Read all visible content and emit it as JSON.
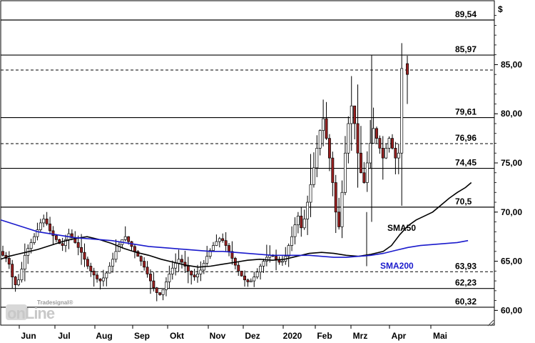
{
  "chart_data": {
    "type": "candlestick",
    "y_unit": "$",
    "ylim": [
      58.5,
      91.5
    ],
    "y_ticks": [
      "85,00",
      "80,00",
      "75,00",
      "70,00",
      "65,00",
      "60,00"
    ],
    "y_tick_values": [
      85,
      80,
      75,
      70,
      65,
      60
    ],
    "x_ticks": [
      "Jun",
      "Jul",
      "Aug",
      "Sep",
      "Okt",
      "Nov",
      "Dez",
      "2020",
      "Feb",
      "Mrz",
      "Apr",
      "Mai"
    ],
    "levels": [
      {
        "label": "89,54",
        "value": 89.54,
        "style": "solid"
      },
      {
        "label": "85,97",
        "value": 85.97,
        "style": "solid"
      },
      {
        "label": "",
        "value": 84.45,
        "style": "dashed"
      },
      {
        "label": "79,61",
        "value": 79.61,
        "style": "solid"
      },
      {
        "label": "76,96",
        "value": 76.96,
        "style": "dashed"
      },
      {
        "label": "74,45",
        "value": 74.45,
        "style": "solid"
      },
      {
        "label": "70,5",
        "value": 70.5,
        "style": "solid"
      },
      {
        "label": "63,93",
        "value": 63.93,
        "style": "dashed"
      },
      {
        "label": "62,23",
        "value": 62.23,
        "style": "solid"
      },
      {
        "label": "60,32",
        "value": 60.32,
        "style": "solid"
      }
    ],
    "series": [
      {
        "name": "SMA50",
        "color": "#000000",
        "values": [
          [
            0,
            65.2
          ],
          [
            10,
            65.5
          ],
          [
            20,
            65.7
          ],
          [
            30,
            65.9
          ],
          [
            45,
            66.2
          ],
          [
            60,
            66.6
          ],
          [
            75,
            67.0
          ],
          [
            90,
            67.3
          ],
          [
            105,
            67.5
          ],
          [
            120,
            67.2
          ],
          [
            135,
            66.8
          ],
          [
            150,
            66.3
          ],
          [
            165,
            65.9
          ],
          [
            180,
            65.6
          ],
          [
            195,
            65.2
          ],
          [
            210,
            64.9
          ],
          [
            225,
            64.6
          ],
          [
            240,
            64.4
          ],
          [
            255,
            64.5
          ],
          [
            270,
            64.7
          ],
          [
            285,
            64.9
          ],
          [
            300,
            65.1
          ],
          [
            315,
            65.2
          ],
          [
            330,
            65.1
          ],
          [
            345,
            65.2
          ],
          [
            360,
            65.5
          ],
          [
            375,
            65.8
          ],
          [
            390,
            65.9
          ],
          [
            405,
            65.8
          ],
          [
            420,
            65.6
          ],
          [
            435,
            65.5
          ],
          [
            450,
            65.7
          ],
          [
            465,
            66.0
          ],
          [
            475,
            66.6
          ],
          [
            485,
            67.7
          ],
          [
            495,
            68.6
          ],
          [
            505,
            69.2
          ],
          [
            515,
            69.6
          ],
          [
            525,
            70.0
          ],
          [
            535,
            70.7
          ],
          [
            545,
            71.4
          ],
          [
            555,
            72.0
          ],
          [
            565,
            72.5
          ],
          [
            572,
            73.0
          ]
        ]
      },
      {
        "name": "SMA200",
        "color": "#1a1acc",
        "values": [
          [
            0,
            69.2
          ],
          [
            15,
            68.8
          ],
          [
            30,
            68.4
          ],
          [
            45,
            68.0
          ],
          [
            60,
            67.8
          ],
          [
            75,
            67.6
          ],
          [
            90,
            67.4
          ],
          [
            105,
            67.3
          ],
          [
            120,
            67.2
          ],
          [
            135,
            67.1
          ],
          [
            150,
            66.9
          ],
          [
            165,
            66.7
          ],
          [
            180,
            66.5
          ],
          [
            195,
            66.4
          ],
          [
            210,
            66.3
          ],
          [
            225,
            66.2
          ],
          [
            240,
            66.1
          ],
          [
            255,
            66.0
          ],
          [
            270,
            66.0
          ],
          [
            285,
            65.9
          ],
          [
            300,
            65.8
          ],
          [
            315,
            65.7
          ],
          [
            330,
            65.6
          ],
          [
            345,
            65.6
          ],
          [
            360,
            65.6
          ],
          [
            375,
            65.6
          ],
          [
            390,
            65.5
          ],
          [
            405,
            65.4
          ],
          [
            420,
            65.4
          ],
          [
            435,
            65.5
          ],
          [
            450,
            65.6
          ],
          [
            465,
            65.8
          ],
          [
            480,
            66.1
          ],
          [
            495,
            66.4
          ],
          [
            510,
            66.6
          ],
          [
            525,
            66.7
          ],
          [
            540,
            66.8
          ],
          [
            555,
            66.9
          ],
          [
            568,
            67.1
          ]
        ]
      }
    ],
    "candle_seed": [
      66.0,
      65.6,
      65.3,
      64.7,
      63.4,
      62.6,
      63.1,
      64.2,
      65.6,
      66.3,
      66.9,
      67.5,
      68.2,
      68.9,
      69.3,
      68.8,
      68.1,
      67.6,
      67.2,
      66.8,
      66.6,
      67.2,
      67.8,
      67.4,
      66.9,
      66.4,
      65.9,
      65.2,
      64.5,
      64.0,
      63.6,
      63.2,
      63.0,
      63.3,
      63.8,
      64.5,
      65.2,
      66.0,
      66.7,
      67.2,
      67.5,
      67.0,
      66.5,
      66.0,
      65.5,
      65.0,
      64.4,
      63.7,
      63.0,
      62.3,
      61.8,
      61.6,
      62.1,
      62.9,
      63.7,
      64.3,
      64.8,
      65.2,
      64.9,
      64.5,
      64.0,
      63.6,
      63.4,
      63.7,
      64.1,
      64.8,
      65.5,
      66.1,
      66.6,
      67.0,
      67.3,
      67.1,
      66.6,
      66.0,
      65.3,
      64.6,
      64.0,
      63.5,
      63.1,
      62.9,
      63.0,
      63.4,
      63.9,
      64.5,
      65.0,
      65.4,
      65.6,
      65.5,
      65.2,
      64.9,
      65.0,
      65.5,
      66.6,
      67.5,
      68.7,
      69.6,
      68.4,
      69.3,
      71.0,
      72.8,
      74.5,
      76.5,
      78.3,
      79.5,
      77.5,
      75.5,
      73.0,
      70.0,
      68.5,
      72.0,
      76.0,
      79.0,
      80.8,
      79.0,
      76.0,
      74.0,
      73.0,
      75.0,
      77.0,
      78.5,
      77.5,
      76.5,
      75.5,
      76.5,
      77.5,
      76.5,
      75.5,
      76.0,
      84.6,
      84.0
    ],
    "sma50_label": "SMA50",
    "sma200_label": "SMA200",
    "x_points_count": 600
  },
  "branding": {
    "logo_text": "onLine",
    "logo_small": "Tradesignal®"
  }
}
